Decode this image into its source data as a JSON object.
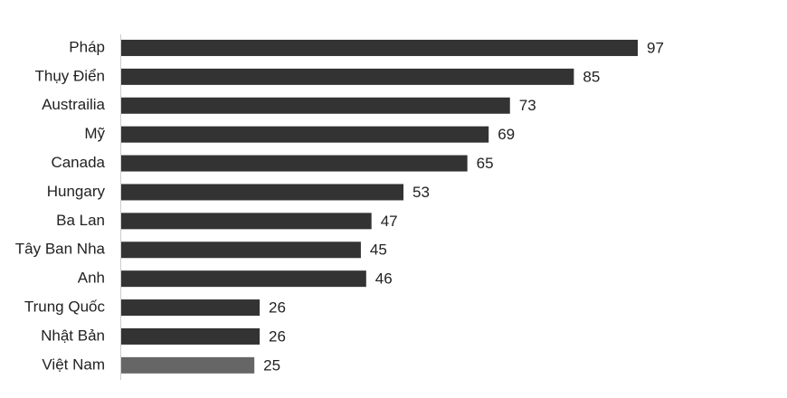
{
  "chart_data": {
    "type": "barh",
    "categories": [
      "Pháp",
      "Thụy Điển",
      "Austrailia",
      "Mỹ",
      "Canada",
      "Hungary",
      "Ba Lan",
      "Tây Ban Nha",
      "Anh",
      "Trung Quốc",
      "Nhật Bản",
      "Việt Nam"
    ],
    "values": [
      97,
      85,
      73,
      69,
      65,
      53,
      47,
      45,
      46,
      26,
      26,
      25
    ],
    "colors": [
      "#333333",
      "#333333",
      "#333333",
      "#333333",
      "#333333",
      "#333333",
      "#333333",
      "#333333",
      "#333333",
      "#333333",
      "#333333",
      "#666666"
    ],
    "xlim": [
      0,
      100
    ]
  }
}
